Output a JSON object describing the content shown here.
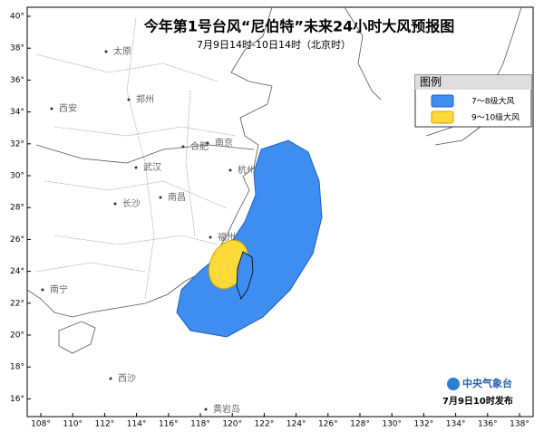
{
  "title": "今年第1号台风“尼伯特”未来24小时大风预报图",
  "subtitle": "7月9日14时-10日14时（北京时）",
  "lat_labels": [
    "40°",
    "38°",
    "36°",
    "34°",
    "32°",
    "30°",
    "28°",
    "26°",
    "24°",
    "22°",
    "20°",
    "18°",
    "16°"
  ],
  "lon_labels": [
    "108°",
    "110°",
    "112°",
    "114°",
    "116°",
    "118°",
    "120°",
    "122°",
    "124°",
    "126°",
    "128°",
    "130°",
    "132°",
    "134°",
    "136°",
    "138°"
  ],
  "cities": [
    "太原",
    "郑州",
    "西安",
    "合肥",
    "南京",
    "武汉",
    "杭州",
    "南昌",
    "长沙",
    "福州",
    "南宁",
    "西沙",
    "黄岩岛"
  ],
  "legend": {
    "title": "图例",
    "items": [
      "7～8级大风",
      "9～10级大风"
    ]
  },
  "footer": {
    "agency": "中央气象台",
    "issued": "7月9日10时发布"
  }
}
